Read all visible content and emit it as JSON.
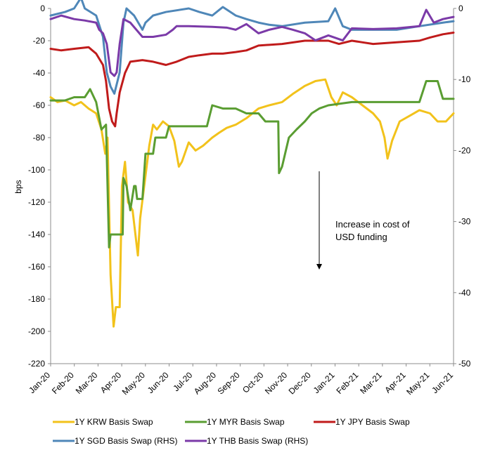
{
  "chart_data": {
    "type": "line",
    "ylabel": "bps",
    "left_axis": {
      "ylim": [
        -220,
        0
      ],
      "ticks": [
        0,
        -20,
        -40,
        -60,
        -80,
        -100,
        -120,
        -140,
        -160,
        -180,
        -200,
        -220
      ]
    },
    "right_axis": {
      "ylim": [
        -50,
        0
      ],
      "ticks": [
        0,
        -10,
        -20,
        -30,
        -40,
        -50
      ],
      "tick_labels": [
        "0",
        "-10",
        "-20",
        "-30",
        "-40",
        "-50"
      ]
    },
    "x_tick_labels": [
      "Jan-20",
      "Feb-20",
      "Mar-20",
      "Apr-20",
      "May-20",
      "Jun-20",
      "Jul-20",
      "Aug-20",
      "Sep-20",
      "Oct-20",
      "Nov-20",
      "Dec-20",
      "Jan-21",
      "Feb-21",
      "Mar-21",
      "Apr-21",
      "May-21",
      "Jun-21"
    ],
    "x_start": "2020-01-01",
    "x_end": "2021-06-15",
    "annotation": {
      "lines": [
        "Increase in cost of",
        "USD funding"
      ]
    },
    "series": [
      {
        "name": "1Y KRW Basis Swap",
        "axis": "left",
        "color": "#f2c21b",
        "points": [
          [
            "2020-01-01",
            -55
          ],
          [
            "2020-01-10",
            -58
          ],
          [
            "2020-01-20",
            -57
          ],
          [
            "2020-02-01",
            -60
          ],
          [
            "2020-02-10",
            -58
          ],
          [
            "2020-02-20",
            -62
          ],
          [
            "2020-03-01",
            -65
          ],
          [
            "2020-03-08",
            -75
          ],
          [
            "2020-03-13",
            -90
          ],
          [
            "2020-03-16",
            -80
          ],
          [
            "2020-03-20",
            -165
          ],
          [
            "2020-03-24",
            -197
          ],
          [
            "2020-03-27",
            -185
          ],
          [
            "2020-04-01",
            -185
          ],
          [
            "2020-04-04",
            -110
          ],
          [
            "2020-04-08",
            -95
          ],
          [
            "2020-04-12",
            -120
          ],
          [
            "2020-04-18",
            -125
          ],
          [
            "2020-04-25",
            -153
          ],
          [
            "2020-04-28",
            -130
          ],
          [
            "2020-05-02",
            -115
          ],
          [
            "2020-05-06",
            -100
          ],
          [
            "2020-05-10",
            -85
          ],
          [
            "2020-05-15",
            -72
          ],
          [
            "2020-05-20",
            -75
          ],
          [
            "2020-05-28",
            -70
          ],
          [
            "2020-06-05",
            -73
          ],
          [
            "2020-06-12",
            -82
          ],
          [
            "2020-06-18",
            -98
          ],
          [
            "2020-06-22",
            -95
          ],
          [
            "2020-07-01",
            -83
          ],
          [
            "2020-07-10",
            -88
          ],
          [
            "2020-07-20",
            -85
          ],
          [
            "2020-08-01",
            -80
          ],
          [
            "2020-08-10",
            -77
          ],
          [
            "2020-08-20",
            -74
          ],
          [
            "2020-09-01",
            -72
          ],
          [
            "2020-09-15",
            -68
          ],
          [
            "2020-10-01",
            -62
          ],
          [
            "2020-10-15",
            -60
          ],
          [
            "2020-11-01",
            -58
          ],
          [
            "2020-11-15",
            -53
          ],
          [
            "2020-12-01",
            -48
          ],
          [
            "2020-12-15",
            -45
          ],
          [
            "2020-12-28",
            -44
          ],
          [
            "2021-01-05",
            -55
          ],
          [
            "2021-01-12",
            -60
          ],
          [
            "2021-01-20",
            -52
          ],
          [
            "2021-02-01",
            -55
          ],
          [
            "2021-02-15",
            -60
          ],
          [
            "2021-03-01",
            -65
          ],
          [
            "2021-03-10",
            -70
          ],
          [
            "2021-03-16",
            -80
          ],
          [
            "2021-03-20",
            -93
          ],
          [
            "2021-03-26",
            -82
          ],
          [
            "2021-04-05",
            -70
          ],
          [
            "2021-04-20",
            -66
          ],
          [
            "2021-05-01",
            -63
          ],
          [
            "2021-05-15",
            -65
          ],
          [
            "2021-05-25",
            -70
          ],
          [
            "2021-06-05",
            -70
          ],
          [
            "2021-06-15",
            -65
          ]
        ]
      },
      {
        "name": "1Y MYR Basis Swap",
        "axis": "left",
        "color": "#5a9d32",
        "points": [
          [
            "2020-01-01",
            -57
          ],
          [
            "2020-01-20",
            -57
          ],
          [
            "2020-02-01",
            -55
          ],
          [
            "2020-02-15",
            -55
          ],
          [
            "2020-02-22",
            -50
          ],
          [
            "2020-03-01",
            -58
          ],
          [
            "2020-03-08",
            -75
          ],
          [
            "2020-03-14",
            -72
          ],
          [
            "2020-03-18",
            -148
          ],
          [
            "2020-03-20",
            -140
          ],
          [
            "2020-04-05",
            -140
          ],
          [
            "2020-04-06",
            -105
          ],
          [
            "2020-04-10",
            -110
          ],
          [
            "2020-04-15",
            -125
          ],
          [
            "2020-04-20",
            -110
          ],
          [
            "2020-04-22",
            -110
          ],
          [
            "2020-04-24",
            -118
          ],
          [
            "2020-05-01",
            -118
          ],
          [
            "2020-05-05",
            -90
          ],
          [
            "2020-05-15",
            -90
          ],
          [
            "2020-05-18",
            -80
          ],
          [
            "2020-06-01",
            -80
          ],
          [
            "2020-06-05",
            -73
          ],
          [
            "2020-07-01",
            -73
          ],
          [
            "2020-07-25",
            -73
          ],
          [
            "2020-08-01",
            -60
          ],
          [
            "2020-08-15",
            -62
          ],
          [
            "2020-09-01",
            -62
          ],
          [
            "2020-09-15",
            -65
          ],
          [
            "2020-10-01",
            -65
          ],
          [
            "2020-10-10",
            -70
          ],
          [
            "2020-10-20",
            -70
          ],
          [
            "2020-10-27",
            -70
          ],
          [
            "2020-10-28",
            -102
          ],
          [
            "2020-11-01",
            -98
          ],
          [
            "2020-11-05",
            -90
          ],
          [
            "2020-11-10",
            -80
          ],
          [
            "2020-11-20",
            -75
          ],
          [
            "2020-12-01",
            -70
          ],
          [
            "2020-12-10",
            -65
          ],
          [
            "2020-12-20",
            -62
          ],
          [
            "2021-01-01",
            -60
          ],
          [
            "2021-02-01",
            -58
          ],
          [
            "2021-03-01",
            -58
          ],
          [
            "2021-04-01",
            -58
          ],
          [
            "2021-05-01",
            -58
          ],
          [
            "2021-05-10",
            -45
          ],
          [
            "2021-05-25",
            -45
          ],
          [
            "2021-06-01",
            -56
          ],
          [
            "2021-06-15",
            -56
          ]
        ]
      },
      {
        "name": "1Y JPY Basis Swap",
        "axis": "left",
        "color": "#c01b1b",
        "points": [
          [
            "2020-01-01",
            -25
          ],
          [
            "2020-01-15",
            -26
          ],
          [
            "2020-02-01",
            -25
          ],
          [
            "2020-02-20",
            -24
          ],
          [
            "2020-03-01",
            -28
          ],
          [
            "2020-03-10",
            -35
          ],
          [
            "2020-03-14",
            -45
          ],
          [
            "2020-03-18",
            -62
          ],
          [
            "2020-03-22",
            -70
          ],
          [
            "2020-03-26",
            -73
          ],
          [
            "2020-03-28",
            -65
          ],
          [
            "2020-04-01",
            -52
          ],
          [
            "2020-04-08",
            -40
          ],
          [
            "2020-04-15",
            -33
          ],
          [
            "2020-05-01",
            -32
          ],
          [
            "2020-05-15",
            -33
          ],
          [
            "2020-06-01",
            -35
          ],
          [
            "2020-06-15",
            -33
          ],
          [
            "2020-07-01",
            -30
          ],
          [
            "2020-07-15",
            -29
          ],
          [
            "2020-08-01",
            -28
          ],
          [
            "2020-08-15",
            -28
          ],
          [
            "2020-09-01",
            -27
          ],
          [
            "2020-09-15",
            -26
          ],
          [
            "2020-10-01",
            -23
          ],
          [
            "2020-11-01",
            -22
          ],
          [
            "2020-12-01",
            -20
          ],
          [
            "2021-01-01",
            -20
          ],
          [
            "2021-01-15",
            -22
          ],
          [
            "2021-02-01",
            -20
          ],
          [
            "2021-02-15",
            -21
          ],
          [
            "2021-03-01",
            -22
          ],
          [
            "2021-04-01",
            -21
          ],
          [
            "2021-05-01",
            -20
          ],
          [
            "2021-05-15",
            -18
          ],
          [
            "2021-06-01",
            -16
          ],
          [
            "2021-06-15",
            -15
          ]
        ]
      },
      {
        "name": "1Y SGD Basis Swap (RHS)",
        "axis": "right",
        "color": "#4f87b8",
        "points": [
          [
            "2020-01-01",
            -1
          ],
          [
            "2020-01-20",
            -0.5
          ],
          [
            "2020-02-01",
            0
          ],
          [
            "2020-02-10",
            1.5
          ],
          [
            "2020-02-15",
            0
          ],
          [
            "2020-03-01",
            -1
          ],
          [
            "2020-03-10",
            -4
          ],
          [
            "2020-03-15",
            -9
          ],
          [
            "2020-03-20",
            -11
          ],
          [
            "2020-03-25",
            -12
          ],
          [
            "2020-04-01",
            -9
          ],
          [
            "2020-04-06",
            -2
          ],
          [
            "2020-04-10",
            0
          ],
          [
            "2020-04-20",
            -1
          ],
          [
            "2020-05-01",
            -3
          ],
          [
            "2020-05-05",
            -2
          ],
          [
            "2020-05-15",
            -1
          ],
          [
            "2020-06-01",
            -0.5
          ],
          [
            "2020-07-01",
            0
          ],
          [
            "2020-07-15",
            -0.5
          ],
          [
            "2020-08-01",
            -1
          ],
          [
            "2020-08-15",
            0.2
          ],
          [
            "2020-09-01",
            -1
          ],
          [
            "2020-09-15",
            -1.5
          ],
          [
            "2020-10-01",
            -2
          ],
          [
            "2020-10-15",
            -2.3
          ],
          [
            "2020-11-01",
            -2.5
          ],
          [
            "2020-12-01",
            -2
          ],
          [
            "2021-01-01",
            -1.8
          ],
          [
            "2021-01-10",
            0
          ],
          [
            "2021-01-20",
            -2.5
          ],
          [
            "2021-02-01",
            -3
          ],
          [
            "2021-03-01",
            -3
          ],
          [
            "2021-04-01",
            -3
          ],
          [
            "2021-05-01",
            -2.5
          ],
          [
            "2021-06-01",
            -2
          ],
          [
            "2021-06-15",
            -1.8
          ]
        ]
      },
      {
        "name": "1Y THB Basis Swap (RHS)",
        "axis": "right",
        "color": "#7b3aa8",
        "points": [
          [
            "2020-01-01",
            -1.5
          ],
          [
            "2020-01-15",
            -1
          ],
          [
            "2020-02-01",
            -1.5
          ],
          [
            "2020-02-15",
            -1.7
          ],
          [
            "2020-03-01",
            -2
          ],
          [
            "2020-03-05",
            -3
          ],
          [
            "2020-03-10",
            -3.5
          ],
          [
            "2020-03-15",
            -5
          ],
          [
            "2020-03-20",
            -9
          ],
          [
            "2020-03-25",
            -9.5
          ],
          [
            "2020-03-28",
            -9
          ],
          [
            "2020-04-01",
            -5
          ],
          [
            "2020-04-06",
            -1.5
          ],
          [
            "2020-04-15",
            -2
          ],
          [
            "2020-05-01",
            -4
          ],
          [
            "2020-05-15",
            -4
          ],
          [
            "2020-06-01",
            -3.7
          ],
          [
            "2020-06-10",
            -3
          ],
          [
            "2020-06-15",
            -2.5
          ],
          [
            "2020-07-01",
            -2.5
          ],
          [
            "2020-08-01",
            -2.6
          ],
          [
            "2020-08-20",
            -2.7
          ],
          [
            "2020-09-01",
            -3
          ],
          [
            "2020-09-15",
            -2.2
          ],
          [
            "2020-10-01",
            -3.5
          ],
          [
            "2020-10-15",
            -3
          ],
          [
            "2020-11-01",
            -2.6
          ],
          [
            "2020-11-15",
            -3
          ],
          [
            "2020-12-01",
            -3.5
          ],
          [
            "2020-12-15",
            -4.5
          ],
          [
            "2021-01-01",
            -3.8
          ],
          [
            "2021-01-20",
            -4.5
          ],
          [
            "2021-02-01",
            -2.8
          ],
          [
            "2021-03-01",
            -2.9
          ],
          [
            "2021-04-01",
            -2.8
          ],
          [
            "2021-05-01",
            -2.5
          ],
          [
            "2021-05-10",
            -0.2
          ],
          [
            "2021-05-20",
            -2
          ],
          [
            "2021-06-01",
            -1.5
          ],
          [
            "2021-06-15",
            -1.2
          ]
        ]
      }
    ]
  }
}
